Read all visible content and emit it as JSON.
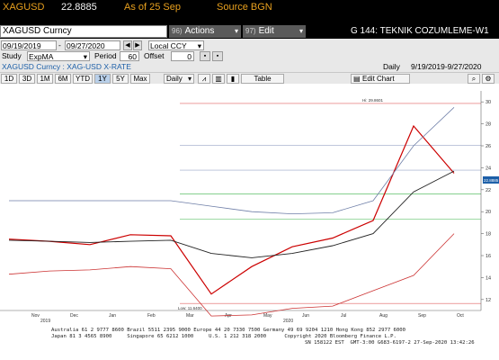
{
  "ticker": {
    "symbol": "XAGUSD",
    "price": "22.8885",
    "as_of": "As of 25 Sep",
    "source": "Source BGN"
  },
  "menu": {
    "security": "XAGUSD Curncy",
    "actions_num": "96)",
    "actions_label": "Actions",
    "edit_num": "97)",
    "edit_label": "Edit",
    "screen_title": "G 144: TEKNIK COZUMLEME-W1"
  },
  "panel": {
    "start_date": "09/19/2019",
    "end_date": "09/27/2020",
    "currency": "Local CCY",
    "study_label": "Study",
    "study_value": "ExpMA",
    "period_label": "Period",
    "period_value": "60",
    "offset_label": "Offset",
    "offset_value": "0",
    "subtitle": "XAGUSD Curncy : XAG-USD X-RATE",
    "frequency": "Daily",
    "date_range": "9/19/2019-9/27/2020"
  },
  "toolbar": {
    "periods": [
      "1D",
      "3D",
      "1M",
      "6M",
      "YTD",
      "1Y",
      "5Y",
      "Max"
    ],
    "active_period": "1Y",
    "freq": "Daily",
    "table": "Table",
    "edit_chart": "Edit Chart"
  },
  "chart_data": {
    "type": "line",
    "x": [
      "Oct 2019",
      "Nov 2019",
      "Dec 2019",
      "Jan 2020",
      "Feb 2020",
      "Mar 2020",
      "Apr 2020",
      "May 2020",
      "Jun 2020",
      "Jul 2020",
      "Aug 2020",
      "Sep 2020"
    ],
    "series": [
      {
        "values": [
          17.5,
          17.3,
          17.0,
          17.9,
          17.8,
          12.5,
          15.0,
          16.8,
          17.6,
          19.2,
          27.8,
          23.5
        ]
      },
      {
        "values": [
          21.0,
          21.0,
          21.0,
          21.0,
          21.0,
          20.5,
          20.0,
          19.8,
          19.9,
          21.0,
          26.0,
          29.5
        ]
      },
      {
        "values": [
          14.3,
          14.6,
          14.7,
          15.0,
          14.8,
          10.5,
          10.6,
          11.2,
          11.4,
          12.8,
          14.2,
          18.0
        ]
      },
      {
        "values": [
          17.4,
          17.3,
          17.2,
          17.3,
          17.4,
          16.2,
          15.8,
          16.2,
          16.9,
          18.0,
          21.8,
          23.7
        ]
      }
    ],
    "ylim": [
      11,
      31
    ],
    "y_ticks": [
      12,
      14,
      16,
      18,
      20,
      22,
      24,
      26,
      28,
      30
    ],
    "x_month_labels": [
      "Nov",
      "Dec",
      "Jan",
      "Feb",
      "Mar",
      "Apr",
      "May",
      "Jun",
      "Jul",
      "Aug",
      "Sep",
      "Oct"
    ],
    "x_year_labels": [
      "2019",
      "2020"
    ],
    "fib_levels": [
      29.86,
      26.05,
      23.78,
      21.62,
      19.31,
      11.64
    ],
    "annotations": {
      "high": "Hi: 29.8601",
      "low": "Low: 11.6400"
    },
    "last_price": "22.8885",
    "colors": {
      "price": "#cc0000",
      "upper": "#6f7fa8",
      "lower": "#cc3333",
      "ema": "#222222",
      "fib_red": "#e06060",
      "fib_green": "#3cb44b"
    }
  },
  "footer": {
    "line1": "Australia 61 2 9777 8600 Brazil 5511 2395 9000 Europe 44 20 7330 7500 Germany 49 69 9204 1210 Hong Kong 852 2977 6000",
    "line2": "Japan 81 3 4565 8900     Singapore 65 6212 1000     U.S. 1 212 318 2000      Copyright 2020 Bloomberg Finance L.P.",
    "line3": "SN 158122 EST  GMT-3:00 G683-6197-2 27-Sep-2020 13:42:26"
  }
}
